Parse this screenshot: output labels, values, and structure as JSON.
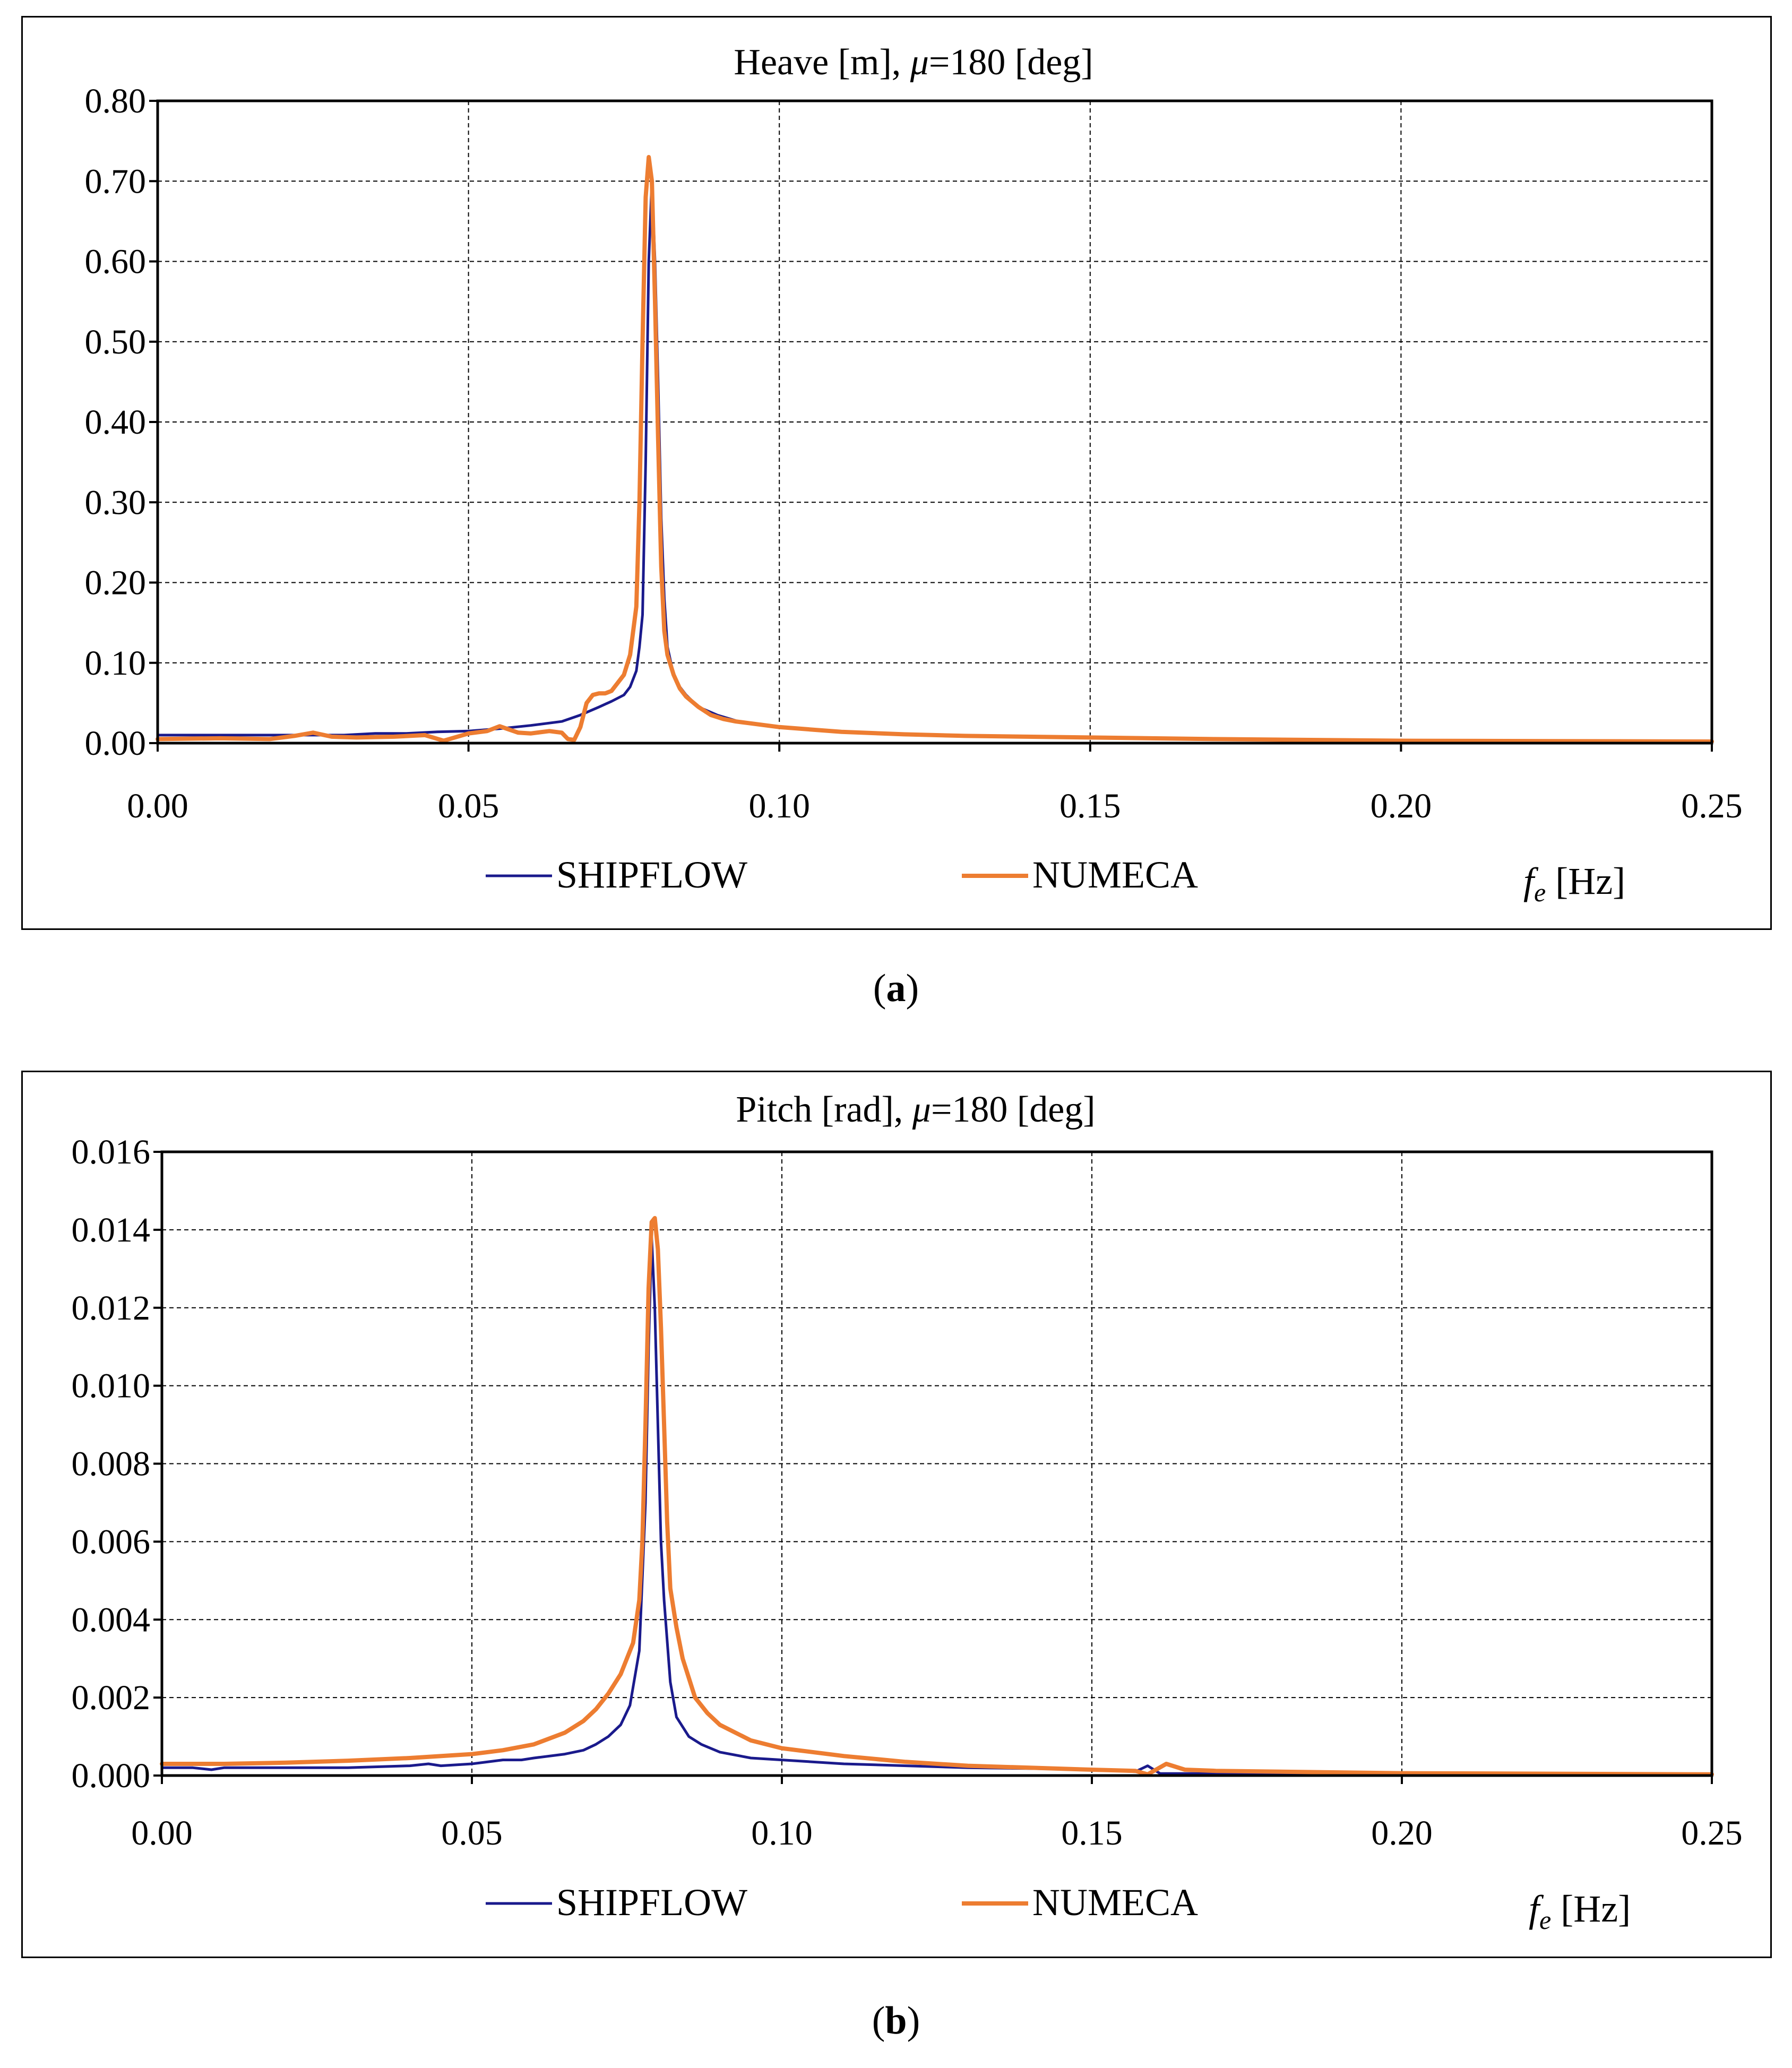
{
  "colors": {
    "shipflow": "#1a1a8c",
    "numeca": "#ed7d31",
    "grid": "#000000"
  },
  "chart_data": [
    {
      "type": "line",
      "panel": "a",
      "title_parts": [
        "Heave [m], ",
        "μ",
        "=180 [deg]"
      ],
      "xlabel_parts": [
        "f",
        "e",
        " [Hz]"
      ],
      "xlim": [
        0,
        0.25
      ],
      "ylim": [
        0,
        0.8
      ],
      "grid": true,
      "legend_position": "bottom-center",
      "x_ticks": [
        0,
        0.05,
        0.1,
        0.15,
        0.2,
        0.25
      ],
      "x_tick_labels": [
        "0.00",
        "0.05",
        "0.10",
        "0.15",
        "0.20",
        "0.25"
      ],
      "y_ticks": [
        0,
        0.1,
        0.2,
        0.3,
        0.4,
        0.5,
        0.6,
        0.7,
        0.8
      ],
      "y_tick_labels": [
        "0.00",
        "0.10",
        "0.20",
        "0.30",
        "0.40",
        "0.50",
        "0.60",
        "0.70",
        "0.80"
      ],
      "series": [
        {
          "name": "SHIPFLOW",
          "color_key": "shipflow",
          "x": [
            0,
            0.01,
            0.02,
            0.03,
            0.035,
            0.04,
            0.045,
            0.05,
            0.055,
            0.06,
            0.065,
            0.068,
            0.071,
            0.073,
            0.075,
            0.076,
            0.077,
            0.0775,
            0.078,
            0.0785,
            0.079,
            0.0795,
            0.08,
            0.0805,
            0.081,
            0.0815,
            0.082,
            0.083,
            0.084,
            0.085,
            0.087,
            0.09,
            0.093,
            0.095,
            0.1,
            0.11,
            0.12,
            0.13,
            0.15,
            0.17,
            0.2,
            0.25
          ],
          "y": [
            0.01,
            0.01,
            0.01,
            0.01,
            0.012,
            0.012,
            0.014,
            0.015,
            0.018,
            0.022,
            0.027,
            0.035,
            0.045,
            0.052,
            0.06,
            0.07,
            0.09,
            0.12,
            0.16,
            0.35,
            0.6,
            0.7,
            0.6,
            0.45,
            0.28,
            0.18,
            0.12,
            0.085,
            0.07,
            0.06,
            0.045,
            0.035,
            0.028,
            0.025,
            0.02,
            0.014,
            0.011,
            0.009,
            0.007,
            0.005,
            0.003,
            0.002
          ]
        },
        {
          "name": "NUMECA",
          "color_key": "numeca",
          "x": [
            0,
            0.01,
            0.018,
            0.022,
            0.025,
            0.028,
            0.032,
            0.038,
            0.043,
            0.046,
            0.05,
            0.053,
            0.055,
            0.058,
            0.06,
            0.063,
            0.065,
            0.066,
            0.067,
            0.068,
            0.069,
            0.07,
            0.071,
            0.072,
            0.073,
            0.074,
            0.075,
            0.076,
            0.077,
            0.0775,
            0.078,
            0.0785,
            0.079,
            0.0795,
            0.08,
            0.0805,
            0.081,
            0.0815,
            0.082,
            0.083,
            0.084,
            0.085,
            0.087,
            0.089,
            0.091,
            0.093,
            0.095,
            0.1,
            0.11,
            0.12,
            0.13,
            0.15,
            0.17,
            0.2,
            0.25
          ],
          "y": [
            0.005,
            0.006,
            0.005,
            0.009,
            0.013,
            0.008,
            0.007,
            0.008,
            0.01,
            0.003,
            0.012,
            0.015,
            0.021,
            0.013,
            0.012,
            0.015,
            0.013,
            0.005,
            0.004,
            0.02,
            0.05,
            0.06,
            0.062,
            0.062,
            0.065,
            0.075,
            0.085,
            0.11,
            0.17,
            0.3,
            0.5,
            0.68,
            0.73,
            0.7,
            0.55,
            0.38,
            0.22,
            0.14,
            0.11,
            0.085,
            0.068,
            0.058,
            0.045,
            0.035,
            0.03,
            0.027,
            0.025,
            0.02,
            0.014,
            0.011,
            0.009,
            0.007,
            0.005,
            0.003,
            0.002
          ]
        }
      ]
    },
    {
      "type": "line",
      "panel": "b",
      "title_parts": [
        "Pitch [rad], ",
        "μ",
        "=180 [deg]"
      ],
      "xlabel_parts": [
        "f",
        "e",
        " [Hz]"
      ],
      "xlim": [
        0,
        0.25
      ],
      "ylim": [
        0,
        0.016
      ],
      "grid": true,
      "legend_position": "bottom-center",
      "x_ticks": [
        0,
        0.05,
        0.1,
        0.15,
        0.2,
        0.25
      ],
      "x_tick_labels": [
        "0.00",
        "0.05",
        "0.10",
        "0.15",
        "0.20",
        "0.25"
      ],
      "y_ticks": [
        0,
        0.002,
        0.004,
        0.006,
        0.008,
        0.01,
        0.012,
        0.014,
        0.016
      ],
      "y_tick_labels": [
        "0.000",
        "0.002",
        "0.004",
        "0.006",
        "0.008",
        "0.010",
        "0.012",
        "0.014",
        "0.016"
      ],
      "series": [
        {
          "name": "SHIPFLOW",
          "color_key": "shipflow",
          "x": [
            0,
            0.005,
            0.008,
            0.01,
            0.02,
            0.03,
            0.04,
            0.043,
            0.045,
            0.05,
            0.055,
            0.058,
            0.06,
            0.065,
            0.068,
            0.07,
            0.072,
            0.074,
            0.0755,
            0.077,
            0.078,
            0.0785,
            0.079,
            0.0795,
            0.08,
            0.0805,
            0.081,
            0.082,
            0.083,
            0.085,
            0.087,
            0.09,
            0.095,
            0.1,
            0.11,
            0.12,
            0.13,
            0.14,
            0.15,
            0.157,
            0.159,
            0.161,
            0.163,
            0.17,
            0.2,
            0.25
          ],
          "y": [
            0.0002,
            0.0002,
            0.00015,
            0.0002,
            0.0002,
            0.0002,
            0.00025,
            0.0003,
            0.00025,
            0.0003,
            0.0004,
            0.0004,
            0.00045,
            0.00055,
            0.00065,
            0.0008,
            0.001,
            0.0013,
            0.0018,
            0.0032,
            0.007,
            0.011,
            0.0138,
            0.012,
            0.009,
            0.006,
            0.0045,
            0.0024,
            0.0015,
            0.001,
            0.0008,
            0.0006,
            0.00045,
            0.0004,
            0.0003,
            0.00025,
            0.0002,
            0.00018,
            0.00015,
            0.0001,
            0.00025,
            5e-05,
            5e-05,
            5e-05,
            3e-05,
            2e-05
          ]
        },
        {
          "name": "NUMECA",
          "color_key": "numeca",
          "x": [
            0,
            0.01,
            0.02,
            0.03,
            0.04,
            0.05,
            0.055,
            0.06,
            0.065,
            0.068,
            0.07,
            0.072,
            0.074,
            0.075,
            0.076,
            0.077,
            0.0775,
            0.078,
            0.0785,
            0.079,
            0.0795,
            0.08,
            0.0805,
            0.081,
            0.0815,
            0.082,
            0.083,
            0.084,
            0.085,
            0.086,
            0.088,
            0.09,
            0.095,
            0.1,
            0.11,
            0.12,
            0.13,
            0.14,
            0.15,
            0.157,
            0.159,
            0.162,
            0.165,
            0.17,
            0.2,
            0.25
          ],
          "y": [
            0.0003,
            0.0003,
            0.00033,
            0.00038,
            0.00045,
            0.00055,
            0.00065,
            0.0008,
            0.0011,
            0.0014,
            0.0017,
            0.0021,
            0.0026,
            0.003,
            0.0034,
            0.0045,
            0.006,
            0.009,
            0.0125,
            0.0142,
            0.0143,
            0.0135,
            0.0115,
            0.009,
            0.0065,
            0.0048,
            0.0038,
            0.003,
            0.0025,
            0.002,
            0.0016,
            0.0013,
            0.0009,
            0.0007,
            0.0005,
            0.00035,
            0.00025,
            0.0002,
            0.00015,
            0.00012,
            3e-05,
            0.0003,
            0.00015,
            0.00012,
            6e-05,
            3e-05
          ]
        }
      ]
    }
  ],
  "captions": [
    {
      "open": "(",
      "letter": "a",
      "close": ")"
    },
    {
      "open": "(",
      "letter": "b",
      "close": ")"
    }
  ]
}
